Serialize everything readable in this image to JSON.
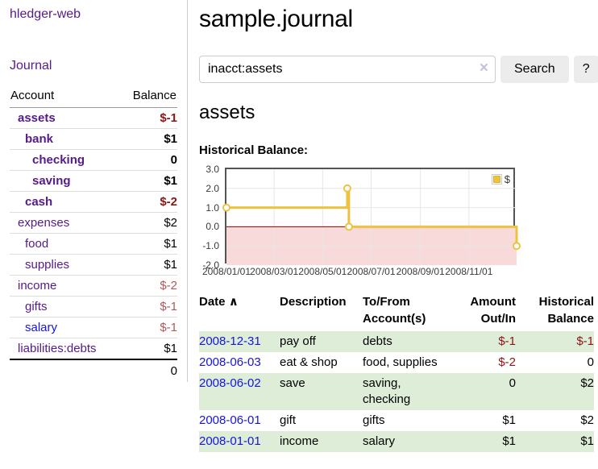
{
  "app": {
    "title": "hledger-web"
  },
  "icons": {
    "sort_asc": "∧",
    "clear_search": "×"
  },
  "sidebar": {
    "journal_label": "Journal",
    "table": {
      "headers": [
        "Account",
        "Balance"
      ],
      "rows": [
        {
          "account": "assets",
          "level": 0,
          "bold": true,
          "balance": "$-1",
          "tone": "neg"
        },
        {
          "account": "bank",
          "level": 1,
          "bold": true,
          "balance": "$1",
          "tone": ""
        },
        {
          "account": "checking",
          "level": 2,
          "bold": true,
          "balance": "0",
          "tone": ""
        },
        {
          "account": "saving",
          "level": 2,
          "bold": true,
          "balance": "$1",
          "tone": ""
        },
        {
          "account": "cash",
          "level": 1,
          "bold": true,
          "balance": "$-2",
          "tone": "neg"
        },
        {
          "account": "expenses",
          "level": 0,
          "bold": false,
          "balance": "$2",
          "tone": ""
        },
        {
          "account": "food",
          "level": 1,
          "bold": false,
          "balance": "$1",
          "tone": ""
        },
        {
          "account": "supplies",
          "level": 1,
          "bold": false,
          "balance": "$1",
          "tone": ""
        },
        {
          "account": "income",
          "level": 0,
          "bold": false,
          "balance": "$-2",
          "tone": "soft"
        },
        {
          "account": "gifts",
          "level": 1,
          "bold": false,
          "balance": "$-1",
          "tone": "soft"
        },
        {
          "account": "salary",
          "level": 1,
          "bold": false,
          "blue": true,
          "balance": "$-1",
          "tone": "soft"
        },
        {
          "account": "liabilities:debts",
          "level": 0,
          "bold": false,
          "balance": "$1",
          "tone": ""
        }
      ],
      "total": "0"
    }
  },
  "header": {
    "title": "sample.journal"
  },
  "search": {
    "value": "inacct:assets",
    "button_label": "Search",
    "help_label": "?"
  },
  "account_page": {
    "heading": "assets",
    "chart_label": "Historical Balance:"
  },
  "chart_data": {
    "type": "line",
    "step": true,
    "title": "Historical Balance",
    "series": [
      {
        "name": "$",
        "color": "#edc240",
        "points": [
          {
            "date": "2008-01-01",
            "value": 1
          },
          {
            "date": "2008-06-01",
            "value": 2
          },
          {
            "date": "2008-06-03",
            "value": 0
          },
          {
            "date": "2008-12-31",
            "value": -1
          }
        ]
      }
    ],
    "x_range": [
      "2008-01-01",
      "2008-12-31"
    ],
    "x_tick_labels": [
      "2008/01/01",
      "2008/03/01",
      "2008/05/01",
      "2008/07/01",
      "2008/09/01",
      "2008/11/01"
    ],
    "y_ticks": [
      3.0,
      2.0,
      1.0,
      0.0,
      -1.0,
      -2.0
    ],
    "ylim": [
      -2,
      3
    ],
    "grid": true,
    "negative_region_color": "#f9dada",
    "zero_line_color": "#8b0000",
    "grid_color": "#e6e6e6",
    "legend": {
      "label": "$",
      "position": "top-right"
    }
  },
  "register": {
    "headers": [
      "Date",
      "Description",
      "To/From Account(s)",
      "Amount Out/In",
      "Historical Balance"
    ],
    "rows": [
      {
        "date": "2008-12-31",
        "description": "pay off",
        "accounts": "debts",
        "amount": "$-1",
        "amount_tone": "neg",
        "balance": "$-1",
        "balance_tone": "neg"
      },
      {
        "date": "2008-06-03",
        "description": "eat & shop",
        "accounts": "food, supplies",
        "amount": "$-2",
        "amount_tone": "neg",
        "balance": "0",
        "balance_tone": ""
      },
      {
        "date": "2008-06-02",
        "description": "save",
        "accounts": "saving, checking",
        "amount": "0",
        "amount_tone": "",
        "balance": "$2",
        "balance_tone": ""
      },
      {
        "date": "2008-06-01",
        "description": "gift",
        "accounts": "gifts",
        "amount": "$1",
        "amount_tone": "",
        "balance": "$2",
        "balance_tone": ""
      },
      {
        "date": "2008-01-01",
        "description": "income",
        "accounts": "salary",
        "amount": "$1",
        "amount_tone": "",
        "balance": "$1",
        "balance_tone": ""
      }
    ]
  }
}
